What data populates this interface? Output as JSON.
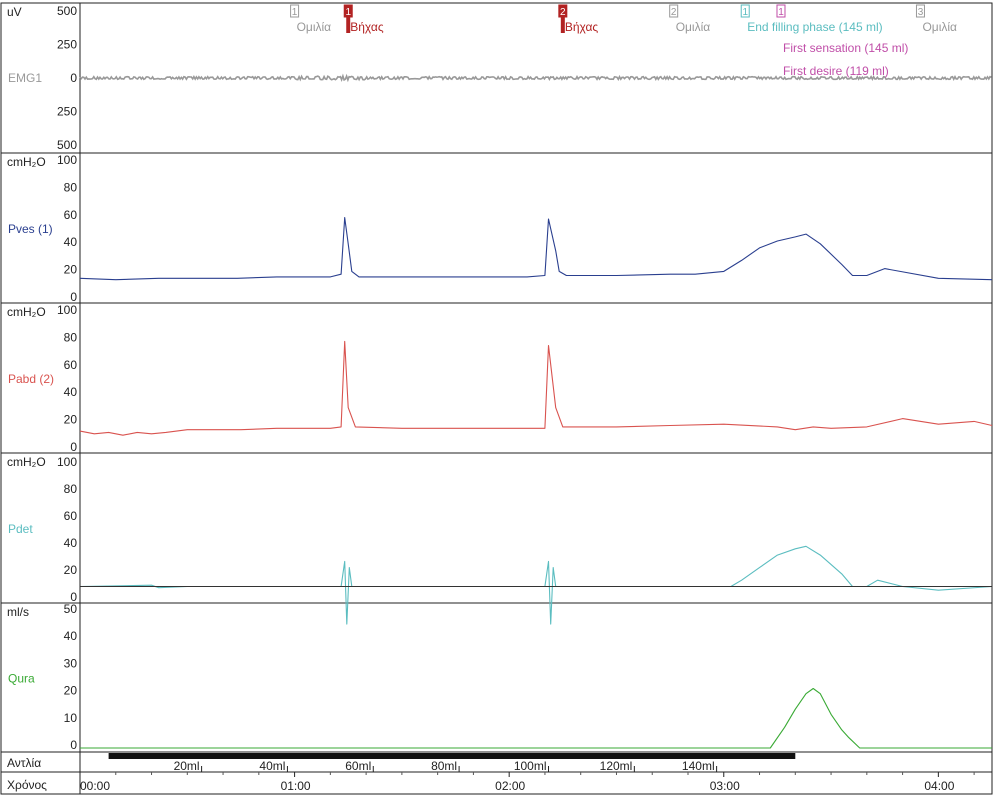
{
  "chart_data": {
    "type": "line",
    "x_unit": "seconds",
    "x_range": [
      0,
      255
    ],
    "time_axis": {
      "label": "Χρόνος",
      "ticks": [
        {
          "t": 0,
          "label": "00:00"
        },
        {
          "t": 60,
          "label": "01:00"
        },
        {
          "t": 120,
          "label": "02:00"
        },
        {
          "t": 180,
          "label": "03:00"
        },
        {
          "t": 240,
          "label": "04:00"
        }
      ]
    },
    "pump_axis": {
      "label": "Αντλία",
      "pump_on": [
        8,
        200
      ],
      "ticks": [
        {
          "t": 34,
          "label": "20ml"
        },
        {
          "t": 58,
          "label": "40ml"
        },
        {
          "t": 82,
          "label": "60ml"
        },
        {
          "t": 106,
          "label": "80ml"
        },
        {
          "t": 131,
          "label": "100ml"
        },
        {
          "t": 155,
          "label": "120ml"
        },
        {
          "t": 178,
          "label": "140ml"
        }
      ]
    },
    "channels": [
      {
        "name": "EMG1",
        "unit": "uV",
        "color": "#999999",
        "ticks": [
          "500",
          "250",
          "0",
          "250",
          "500"
        ],
        "range": [
          -500,
          500
        ],
        "baseline": 0,
        "noise_amplitude": 20
      },
      {
        "name": "Pves (1)",
        "unit": "cmH₂O",
        "color": "#2a3f8f",
        "ticks": [
          "100",
          "80",
          "60",
          "40",
          "20",
          "0"
        ],
        "range": [
          0,
          100
        ],
        "x": [
          0,
          10,
          22,
          30,
          44,
          55,
          70,
          73,
          74,
          75,
          76,
          78,
          90,
          110,
          125,
          130,
          131,
          133,
          134,
          136,
          150,
          165,
          172,
          180,
          185,
          190,
          195,
          200,
          203,
          207,
          213,
          216,
          220,
          225,
          240,
          255
        ],
        "y": [
          15,
          14,
          15,
          15,
          15,
          16,
          16,
          18,
          59,
          40,
          20,
          16,
          16,
          16,
          16,
          17,
          58,
          35,
          20,
          17,
          17,
          18,
          18,
          20,
          28,
          37,
          42,
          45,
          47,
          40,
          25,
          17,
          17,
          22,
          15,
          14
        ]
      },
      {
        "name": "Pabd (2)",
        "unit": "cmH₂O",
        "color": "#d9534f",
        "ticks": [
          "100",
          "80",
          "60",
          "40",
          "20",
          "0"
        ],
        "range": [
          0,
          100
        ],
        "x": [
          0,
          4,
          8,
          12,
          16,
          20,
          24,
          30,
          45,
          55,
          70,
          73,
          74,
          75,
          77,
          90,
          110,
          130,
          131,
          133,
          135,
          150,
          165,
          180,
          195,
          200,
          205,
          210,
          220,
          230,
          240,
          250,
          255
        ],
        "y": [
          13,
          11,
          12,
          10,
          12,
          11,
          12,
          14,
          14,
          15,
          15,
          16,
          78,
          30,
          16,
          15,
          15,
          15,
          75,
          30,
          16,
          16,
          17,
          18,
          16,
          14,
          16,
          15,
          16,
          22,
          18,
          20,
          17
        ]
      },
      {
        "name": "Pdet",
        "unit": "cmH₂O",
        "color": "#5bbdc0",
        "ticks": [
          "100",
          "80",
          "60",
          "40",
          "20",
          "0"
        ],
        "range": [
          -10,
          100
        ],
        "x": [
          0,
          20,
          22,
          30,
          60,
          73,
          74,
          74.6,
          75.3,
          76,
          90,
          120,
          130,
          131,
          131.6,
          132.3,
          133,
          150,
          165,
          182,
          185,
          190,
          195,
          200,
          203,
          207,
          213,
          216,
          220,
          223,
          230,
          240,
          255
        ],
        "y": [
          0,
          1,
          -1,
          0,
          0,
          0,
          20,
          -30,
          15,
          0,
          0,
          0,
          0,
          20,
          -30,
          15,
          0,
          0,
          0,
          0,
          5,
          15,
          25,
          30,
          32,
          25,
          10,
          0,
          0,
          5,
          0,
          -3,
          0
        ]
      },
      {
        "name": "Qura",
        "unit": "ml/s",
        "color": "#3aaa35",
        "ticks": [
          "50",
          "40",
          "30",
          "20",
          "10",
          "0"
        ],
        "range": [
          -3,
          50
        ],
        "x": [
          0,
          193,
          197,
          200,
          203,
          205,
          207,
          210,
          213,
          215,
          218,
          255
        ],
        "y": [
          -3,
          -3,
          5,
          12,
          18,
          20,
          18,
          10,
          4,
          1,
          -3,
          -3
        ]
      }
    ],
    "events": [
      {
        "t": 60,
        "number": "1",
        "label": "Ομιλία",
        "color": "#999999"
      },
      {
        "t": 75,
        "number": "1",
        "label": "Βήχας",
        "color": "#b22222"
      },
      {
        "t": 135,
        "number": "2",
        "label": "Βήχας",
        "color": "#b22222"
      },
      {
        "t": 166,
        "number": "2",
        "label": "Ομιλία",
        "color": "#999999"
      },
      {
        "t": 186,
        "number": "1",
        "label": "End filling phase (145 ml)",
        "color": "#5bbdc0"
      },
      {
        "t": 196,
        "number": "1",
        "label": "First sensation (145 ml)",
        "color": "#c04ea8"
      },
      {
        "t": 196,
        "number": "",
        "label": "First desire (119 ml)",
        "color": "#c04ea8"
      },
      {
        "t": 235,
        "number": "3",
        "label": "Ομιλία",
        "color": "#999999"
      }
    ]
  }
}
